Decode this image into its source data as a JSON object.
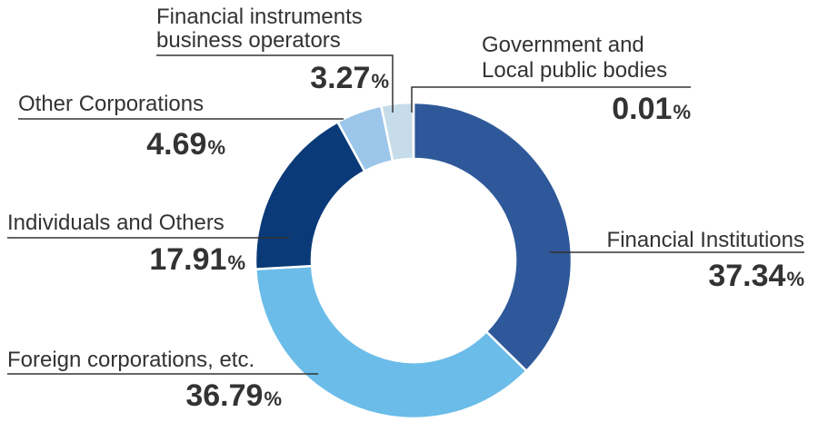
{
  "chart_data": {
    "type": "pie",
    "donut": true,
    "legend": "none",
    "slices": [
      {
        "label": "Financial Institutions",
        "value": 37.34,
        "display": "37.34",
        "color": "#2e5899"
      },
      {
        "label": "Foreign corporations, etc.",
        "value": 36.79,
        "display": "36.79",
        "color": "#6bbce9"
      },
      {
        "label": "Individuals and Others",
        "value": 17.91,
        "display": "17.91",
        "color": "#0a3a78"
      },
      {
        "label": "Other Corporations",
        "value": 4.69,
        "display": "4.69",
        "color": "#9bc6ea"
      },
      {
        "label": "Financial instruments business operators",
        "lines": [
          "Financial instruments",
          "business operators"
        ],
        "value": 3.27,
        "display": "3.27",
        "color": "#c6dcea"
      },
      {
        "label": "Government and Local public bodies",
        "lines": [
          "Government and",
          "Local public bodies"
        ],
        "value": 0.01,
        "display": "0.01",
        "color": "#2e5899"
      }
    ],
    "unit": "%"
  }
}
